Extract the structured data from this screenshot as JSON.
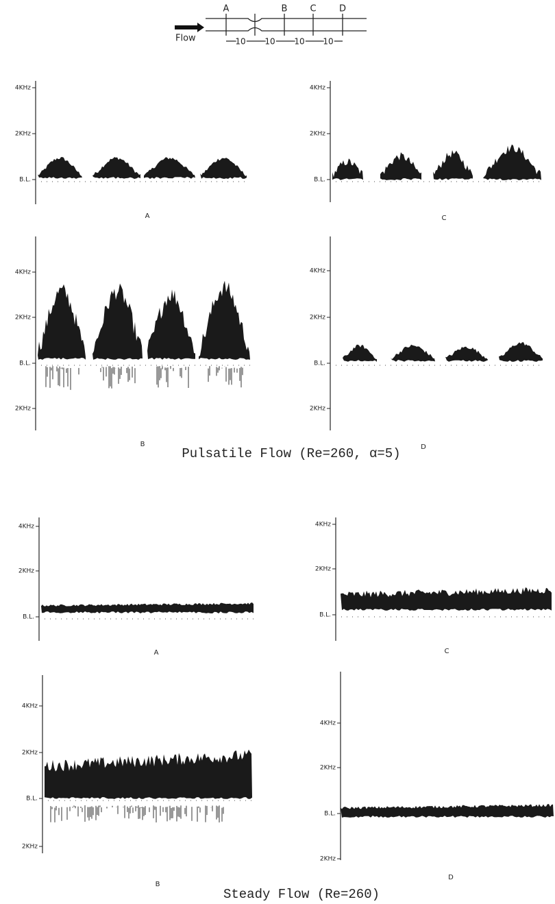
{
  "diagram": {
    "flow_label": "Flow",
    "stations": [
      "A",
      "B",
      "C",
      "D"
    ],
    "spacings": [
      "10",
      "10",
      "10",
      "10"
    ]
  },
  "pulsatile": {
    "caption": "Pulsatile Flow (Re=260, α=5)",
    "panels": [
      {
        "letter": "A",
        "axis_labels": [
          "4KHz",
          "2KHz",
          "B.L."
        ]
      },
      {
        "letter": "C",
        "axis_labels": [
          "4KHz",
          "2KHz",
          "B.L."
        ]
      },
      {
        "letter": "B",
        "axis_labels": [
          "4KHz",
          "2KHz",
          "B.L.",
          "2KHz"
        ]
      },
      {
        "letter": "D",
        "axis_labels": [
          "4KHz",
          "2KHz",
          "B.L.",
          "2KHz"
        ]
      }
    ]
  },
  "steady": {
    "caption": "Steady Flow (Re=260)",
    "panels": [
      {
        "letter": "A",
        "axis_labels": [
          "4KHz",
          "2KHz",
          "B.L."
        ]
      },
      {
        "letter": "C",
        "axis_labels": [
          "4KHz",
          "2KHz",
          "B.L."
        ]
      },
      {
        "letter": "B",
        "axis_labels": [
          "4KHz",
          "2KHz",
          "B.L.",
          "2KHz"
        ]
      },
      {
        "letter": "D",
        "axis_labels": [
          "4KHz",
          "2KHz",
          "B.L.",
          "2KHz"
        ]
      }
    ]
  }
}
